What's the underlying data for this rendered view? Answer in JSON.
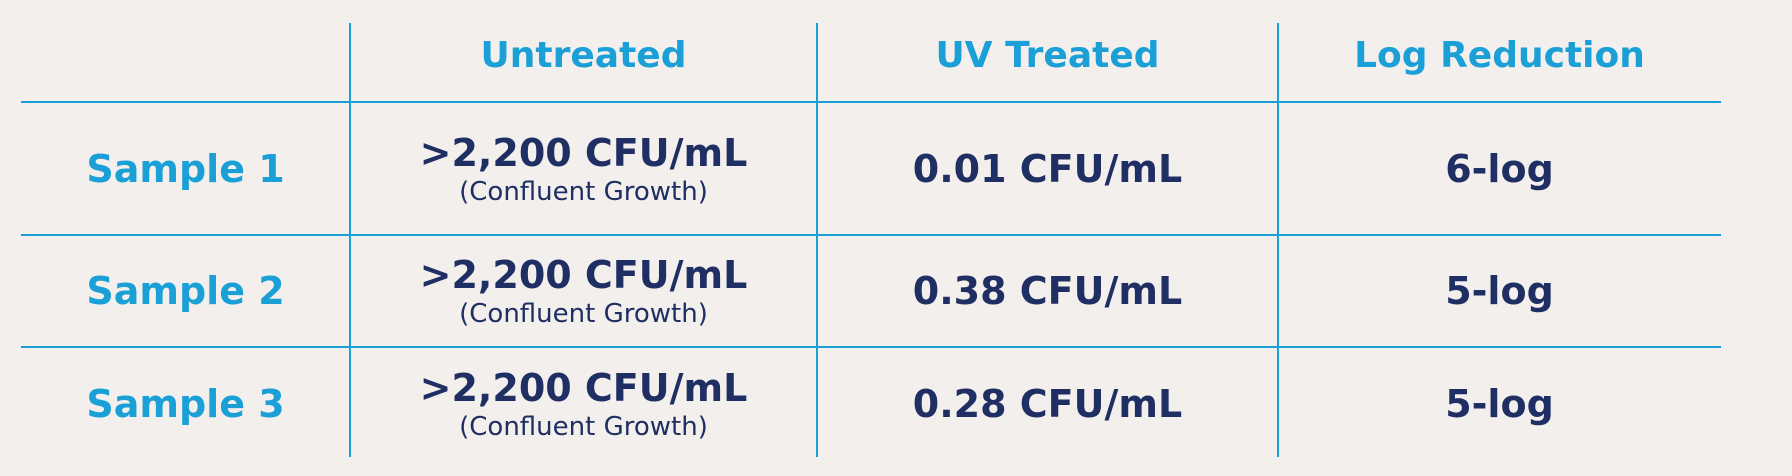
{
  "table": {
    "columns": [
      "Untreated",
      "UV Treated",
      "Log Reduction"
    ],
    "rows": [
      {
        "label": "Sample 1",
        "untreated": ">2,200 CFU/mL",
        "untreated_note": "(Confluent Growth)",
        "uv_treated": "0.01 CFU/mL",
        "log_reduction": "6-log"
      },
      {
        "label": "Sample 2",
        "untreated": ">2,200 CFU/mL",
        "untreated_note": "(Confluent Growth)",
        "uv_treated": "0.38 CFU/mL",
        "log_reduction": "5-log"
      },
      {
        "label": "Sample 3",
        "untreated": ">2,200 CFU/mL",
        "untreated_note": "(Confluent Growth)",
        "uv_treated": "0.28 CFU/mL",
        "log_reduction": "5-log"
      }
    ]
  }
}
